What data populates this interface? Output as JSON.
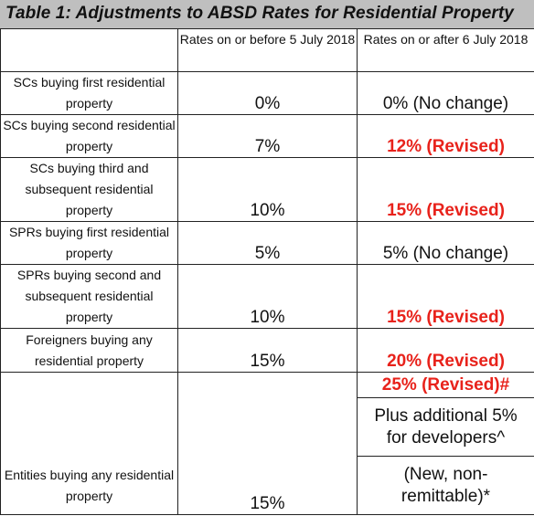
{
  "title": "Table 1: Adjustments to ABSD Rates for Residential Property",
  "header": {
    "col1": "",
    "col2": "Rates on or before 5 July 2018",
    "col3": "Rates on or after 6 July 2018"
  },
  "rows": [
    {
      "label": "SCs buying first residential property",
      "before": "0%",
      "after": "0% (No change)"
    },
    {
      "label": "SCs buying second residential property",
      "before": "7%",
      "after": "12% (Revised)"
    },
    {
      "label": "SCs buying third and subsequent residential property",
      "before": "10%",
      "after": "15% (Revised)"
    },
    {
      "label": "SPRs buying first residential property",
      "before": "5%",
      "after": "5% (No change)"
    },
    {
      "label": "SPRs buying second and subsequent residential property",
      "before": "10%",
      "after": "15% (Revised)"
    },
    {
      "label": "Foreigners buying any residential property",
      "before": "15%",
      "after": "20% (Revised)"
    }
  ],
  "entities": {
    "label": "Entities buying any residential property",
    "before": "15%",
    "after_main": "25% (Revised)#",
    "after_extra": "Plus additional 5% for developers^",
    "after_note": "(New, non-remittable)*"
  },
  "colors": {
    "revised": "#e8221b",
    "title_bg": "#bfbfbf"
  }
}
